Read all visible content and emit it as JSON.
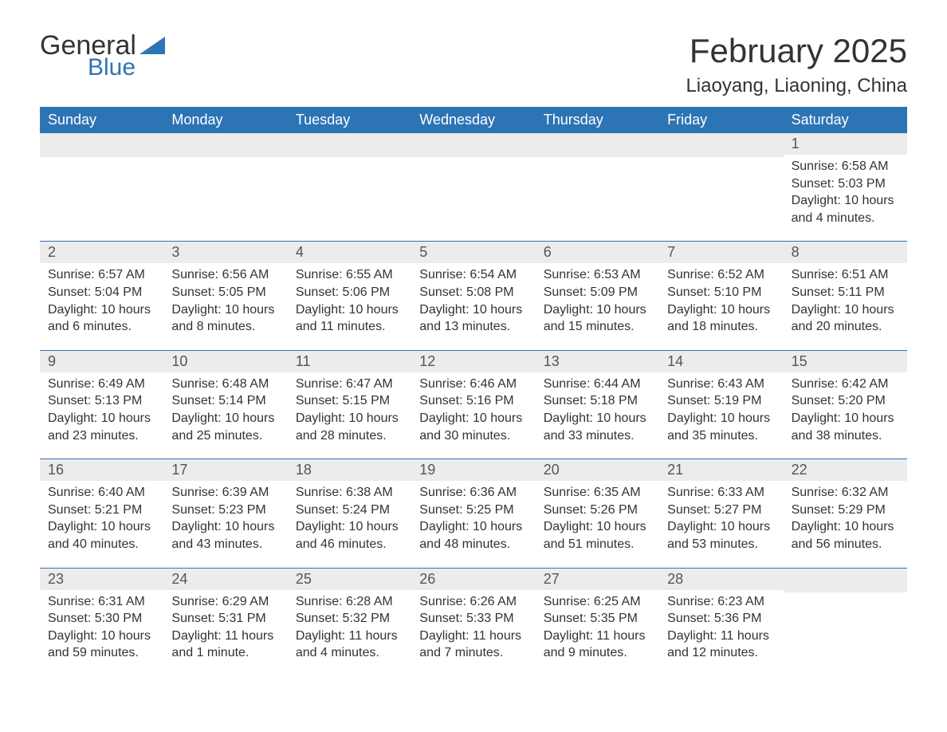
{
  "logo": {
    "word1": "General",
    "word2": "Blue",
    "tri_color": "#2d74b5"
  },
  "title": "February 2025",
  "location": "Liaoyang, Liaoning, China",
  "colors": {
    "header_bg": "#2d74b5",
    "header_text": "#ffffff",
    "daynum_bg": "#ececec",
    "text": "#333333",
    "rule": "#2d74b5"
  },
  "weekdays": [
    "Sunday",
    "Monday",
    "Tuesday",
    "Wednesday",
    "Thursday",
    "Friday",
    "Saturday"
  ],
  "weeks": [
    [
      null,
      null,
      null,
      null,
      null,
      null,
      {
        "n": "1",
        "sunrise": "6:58 AM",
        "sunset": "5:03 PM",
        "daylight": "10 hours and 4 minutes."
      }
    ],
    [
      {
        "n": "2",
        "sunrise": "6:57 AM",
        "sunset": "5:04 PM",
        "daylight": "10 hours and 6 minutes."
      },
      {
        "n": "3",
        "sunrise": "6:56 AM",
        "sunset": "5:05 PM",
        "daylight": "10 hours and 8 minutes."
      },
      {
        "n": "4",
        "sunrise": "6:55 AM",
        "sunset": "5:06 PM",
        "daylight": "10 hours and 11 minutes."
      },
      {
        "n": "5",
        "sunrise": "6:54 AM",
        "sunset": "5:08 PM",
        "daylight": "10 hours and 13 minutes."
      },
      {
        "n": "6",
        "sunrise": "6:53 AM",
        "sunset": "5:09 PM",
        "daylight": "10 hours and 15 minutes."
      },
      {
        "n": "7",
        "sunrise": "6:52 AM",
        "sunset": "5:10 PM",
        "daylight": "10 hours and 18 minutes."
      },
      {
        "n": "8",
        "sunrise": "6:51 AM",
        "sunset": "5:11 PM",
        "daylight": "10 hours and 20 minutes."
      }
    ],
    [
      {
        "n": "9",
        "sunrise": "6:49 AM",
        "sunset": "5:13 PM",
        "daylight": "10 hours and 23 minutes."
      },
      {
        "n": "10",
        "sunrise": "6:48 AM",
        "sunset": "5:14 PM",
        "daylight": "10 hours and 25 minutes."
      },
      {
        "n": "11",
        "sunrise": "6:47 AM",
        "sunset": "5:15 PM",
        "daylight": "10 hours and 28 minutes."
      },
      {
        "n": "12",
        "sunrise": "6:46 AM",
        "sunset": "5:16 PM",
        "daylight": "10 hours and 30 minutes."
      },
      {
        "n": "13",
        "sunrise": "6:44 AM",
        "sunset": "5:18 PM",
        "daylight": "10 hours and 33 minutes."
      },
      {
        "n": "14",
        "sunrise": "6:43 AM",
        "sunset": "5:19 PM",
        "daylight": "10 hours and 35 minutes."
      },
      {
        "n": "15",
        "sunrise": "6:42 AM",
        "sunset": "5:20 PM",
        "daylight": "10 hours and 38 minutes."
      }
    ],
    [
      {
        "n": "16",
        "sunrise": "6:40 AM",
        "sunset": "5:21 PM",
        "daylight": "10 hours and 40 minutes."
      },
      {
        "n": "17",
        "sunrise": "6:39 AM",
        "sunset": "5:23 PM",
        "daylight": "10 hours and 43 minutes."
      },
      {
        "n": "18",
        "sunrise": "6:38 AM",
        "sunset": "5:24 PM",
        "daylight": "10 hours and 46 minutes."
      },
      {
        "n": "19",
        "sunrise": "6:36 AM",
        "sunset": "5:25 PM",
        "daylight": "10 hours and 48 minutes."
      },
      {
        "n": "20",
        "sunrise": "6:35 AM",
        "sunset": "5:26 PM",
        "daylight": "10 hours and 51 minutes."
      },
      {
        "n": "21",
        "sunrise": "6:33 AM",
        "sunset": "5:27 PM",
        "daylight": "10 hours and 53 minutes."
      },
      {
        "n": "22",
        "sunrise": "6:32 AM",
        "sunset": "5:29 PM",
        "daylight": "10 hours and 56 minutes."
      }
    ],
    [
      {
        "n": "23",
        "sunrise": "6:31 AM",
        "sunset": "5:30 PM",
        "daylight": "10 hours and 59 minutes."
      },
      {
        "n": "24",
        "sunrise": "6:29 AM",
        "sunset": "5:31 PM",
        "daylight": "11 hours and 1 minute."
      },
      {
        "n": "25",
        "sunrise": "6:28 AM",
        "sunset": "5:32 PM",
        "daylight": "11 hours and 4 minutes."
      },
      {
        "n": "26",
        "sunrise": "6:26 AM",
        "sunset": "5:33 PM",
        "daylight": "11 hours and 7 minutes."
      },
      {
        "n": "27",
        "sunrise": "6:25 AM",
        "sunset": "5:35 PM",
        "daylight": "11 hours and 9 minutes."
      },
      {
        "n": "28",
        "sunrise": "6:23 AM",
        "sunset": "5:36 PM",
        "daylight": "11 hours and 12 minutes."
      },
      null
    ]
  ],
  "labels": {
    "sunrise": "Sunrise: ",
    "sunset": "Sunset: ",
    "daylight": "Daylight: "
  }
}
